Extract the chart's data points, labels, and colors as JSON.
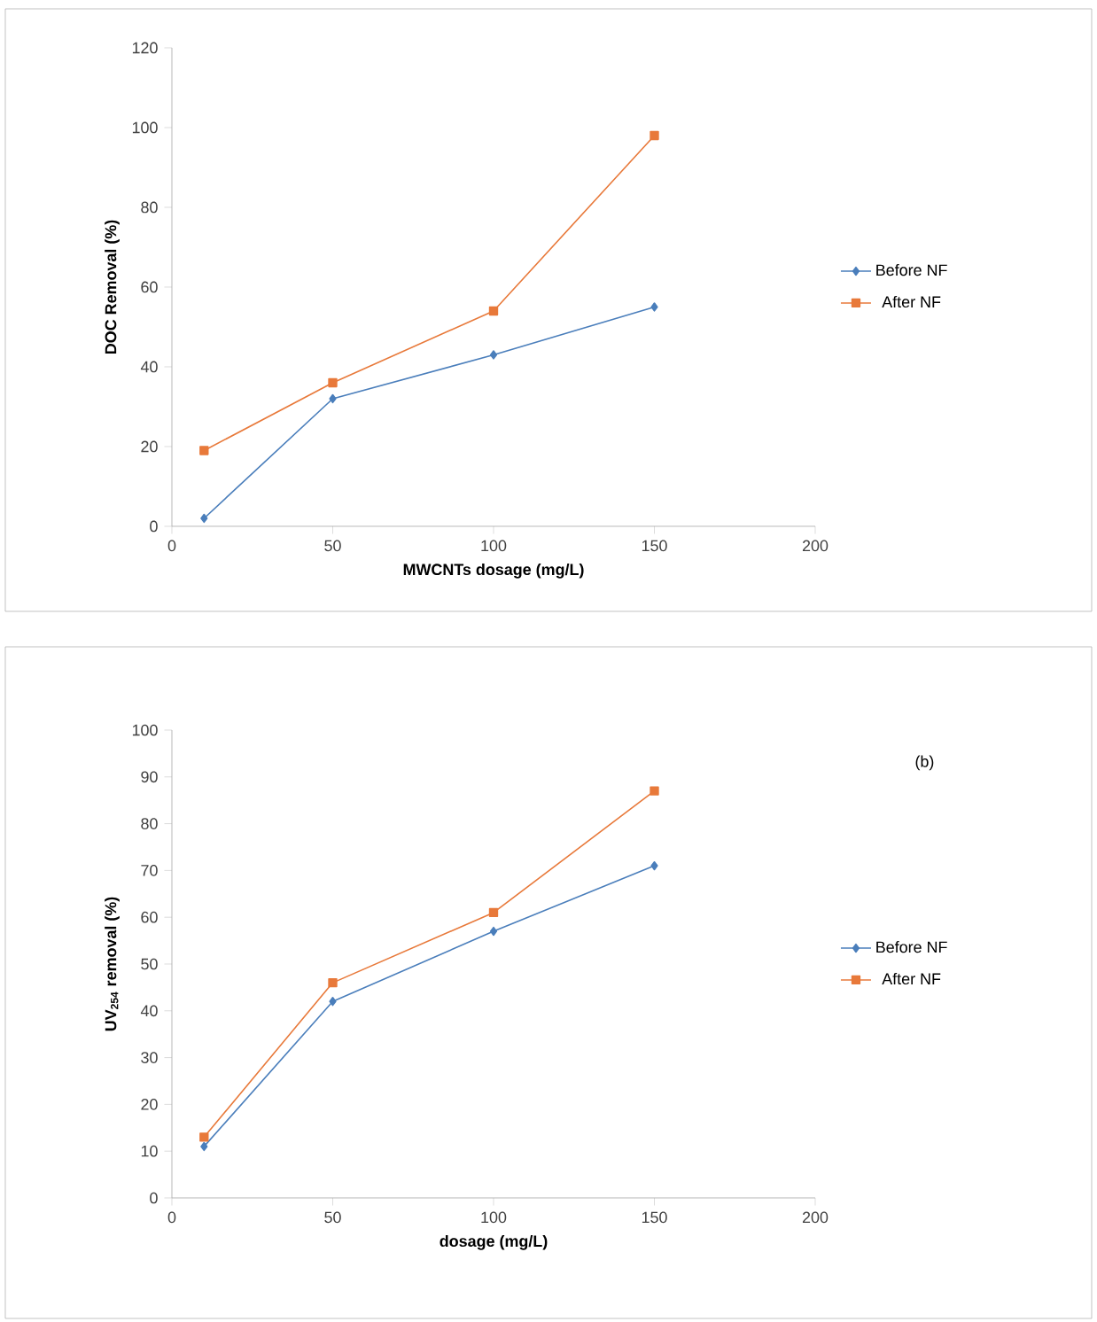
{
  "chart_data": [
    {
      "type": "line",
      "xlabel": "MWCNTs dosage (mg/L)",
      "ylabel": "DOC Removal (%)",
      "xlim": [
        0,
        200
      ],
      "xticks": [
        0,
        50,
        100,
        150,
        200
      ],
      "ylim": [
        0,
        120
      ],
      "yticks": [
        0,
        20,
        40,
        60,
        80,
        100,
        120
      ],
      "legend": "right",
      "series": [
        {
          "name": "Before NF",
          "color": "#4a7ebb",
          "marker": "diamond",
          "x": [
            10,
            50,
            100,
            150
          ],
          "values": [
            2,
            32,
            43,
            55
          ]
        },
        {
          "name": "After NF",
          "color": "#e8793a",
          "marker": "square",
          "x": [
            10,
            50,
            100,
            150
          ],
          "values": [
            19,
            36,
            54,
            98
          ]
        }
      ]
    },
    {
      "type": "line",
      "xlabel": "dosage (mg/L)",
      "ylabel": "UV$_{254}$ removal (%)",
      "annotations": [
        "(b)"
      ],
      "xlim": [
        0,
        200
      ],
      "xticks": [
        0,
        50,
        100,
        150,
        200
      ],
      "ylim": [
        0,
        100
      ],
      "yticks": [
        0,
        10,
        20,
        30,
        40,
        50,
        60,
        70,
        80,
        90,
        100
      ],
      "legend": "right",
      "series": [
        {
          "name": "Before NF",
          "color": "#4a7ebb",
          "marker": "diamond",
          "x": [
            10,
            50,
            100,
            150
          ],
          "values": [
            11,
            42,
            57,
            71
          ]
        },
        {
          "name": "After NF",
          "color": "#e8793a",
          "marker": "square",
          "x": [
            10,
            50,
            100,
            150
          ],
          "values": [
            13,
            46,
            61,
            87
          ]
        }
      ]
    }
  ]
}
